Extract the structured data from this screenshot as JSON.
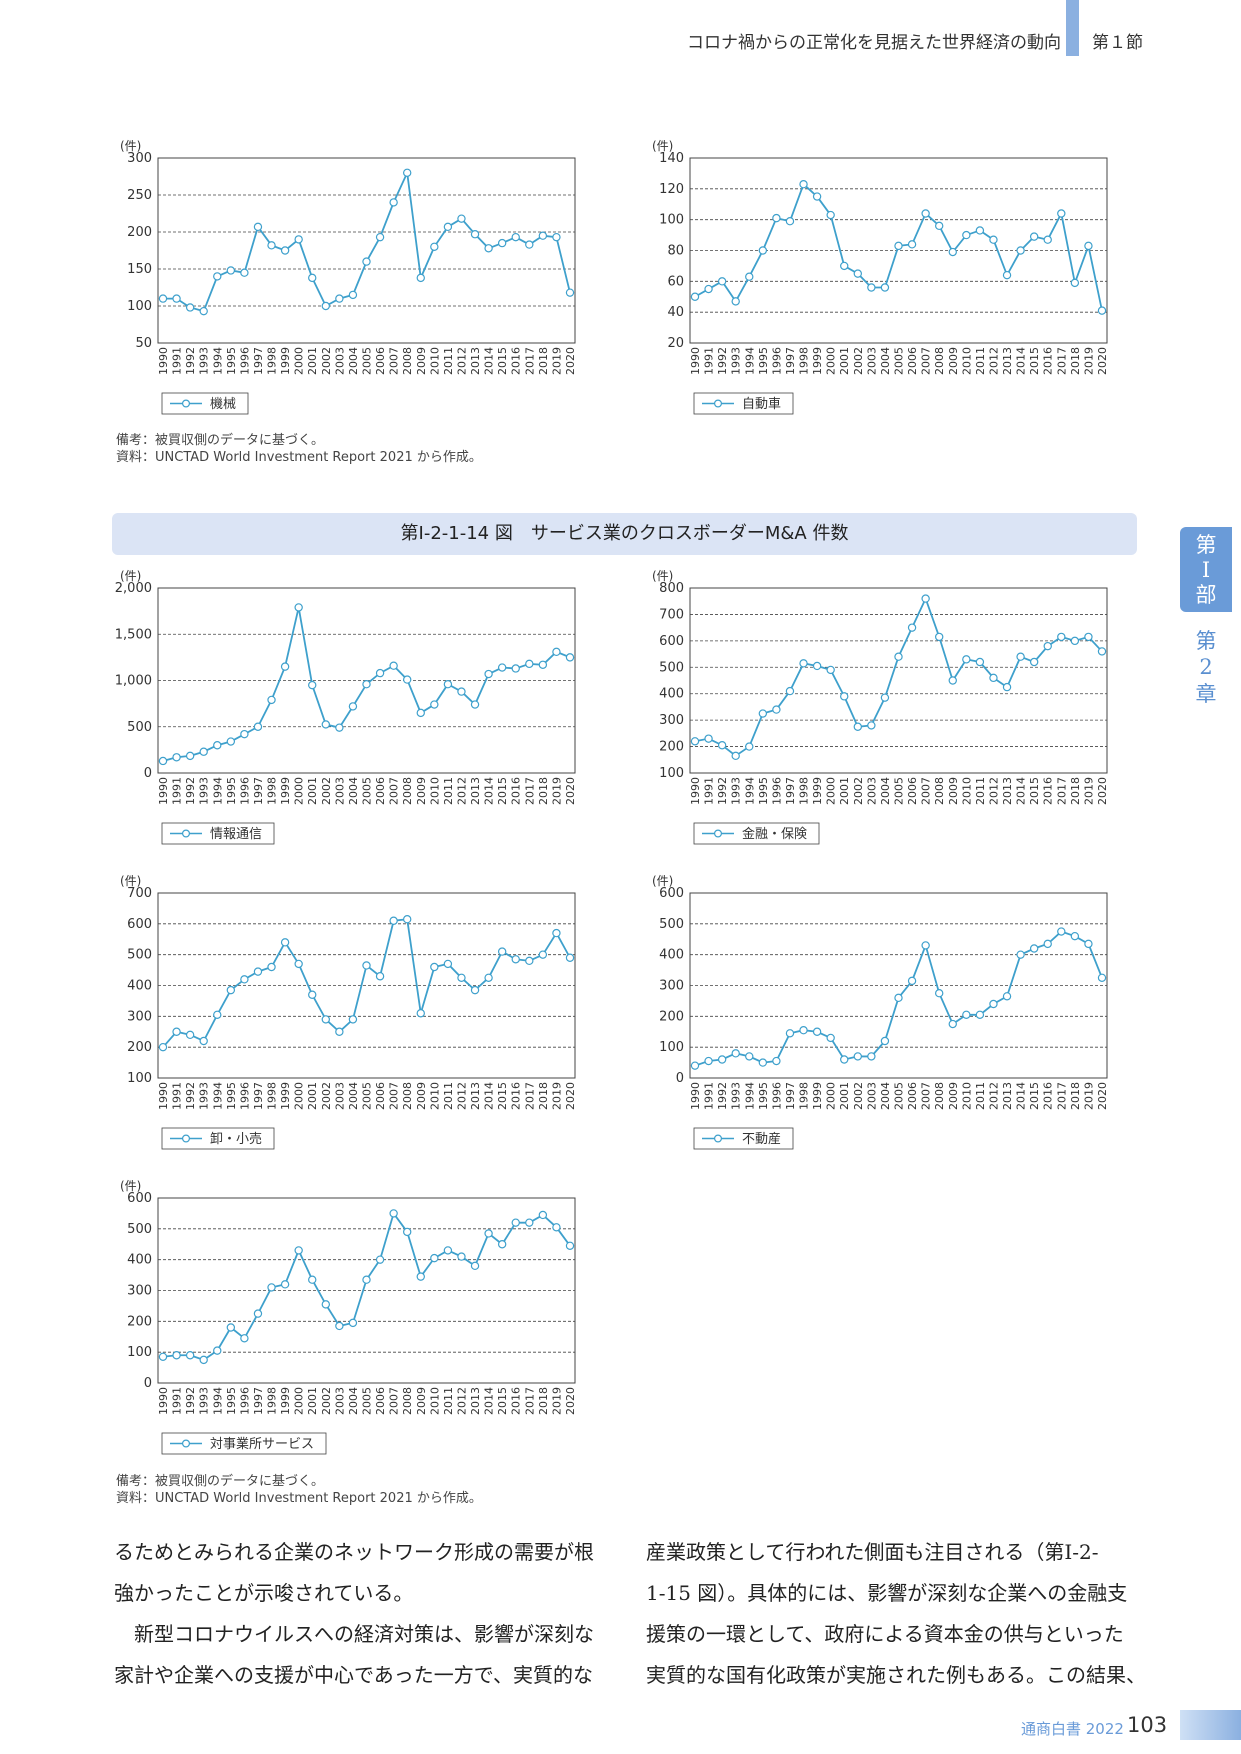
{
  "header": {
    "title": "コロナ禍からの正常化を見据えた世界経済の動向",
    "section": "第１節"
  },
  "side_tab": {
    "part": [
      "第",
      "Ⅰ",
      "部"
    ],
    "chapter": [
      "第",
      "2",
      "章"
    ]
  },
  "figure_title": "第Ⅰ-2-1-14 図　サービス業のクロスボーダーM&A 件数",
  "notes": {
    "top_bikou": "備考：被買収側のデータに基づく。",
    "top_shiryo": "資料：UNCTAD World Investment Report 2021 から作成。",
    "bottom_bikou": "備考：被買収側のデータに基づく。",
    "bottom_shiryo": "資料：UNCTAD World Investment Report 2021 から作成。"
  },
  "body": {
    "left": [
      "るためとみられる企業のネットワーク形成の需要が根",
      "強かったことが示唆されている。",
      "　新型コロナウイルスへの経済対策は、影響が深刻な",
      "家計や企業への支援が中心であった一方で、実質的な"
    ],
    "right": [
      "産業政策として行われた側面も注目される（第Ⅰ-2-",
      "1-15 図）。具体的には、影響が深刻な企業への金融支",
      "援策の一環として、政府による資本金の供与といった",
      "実質的な国有化政策が実施された例もある。この結果、"
    ]
  },
  "footer": {
    "label": "通商白書 2022",
    "page": "103"
  },
  "colors": {
    "line": "#3ea0cc",
    "marker_fill": "#ffffff"
  },
  "chart_data": [
    {
      "type": "line",
      "ylabel": "(件)",
      "x": [
        "1990",
        "1991",
        "1992",
        "1993",
        "1994",
        "1995",
        "1996",
        "1997",
        "1998",
        "1999",
        "2000",
        "2001",
        "2002",
        "2003",
        "2004",
        "2005",
        "2006",
        "2007",
        "2008",
        "2009",
        "2010",
        "2011",
        "2012",
        "2013",
        "2014",
        "2015",
        "2016",
        "2017",
        "2018",
        "2019",
        "2020"
      ],
      "yticks": [
        "50",
        "100",
        "150",
        "200",
        "250",
        "300"
      ],
      "ylim": [
        50,
        300
      ],
      "series": [
        {
          "name": "機械",
          "values": [
            110,
            110,
            98,
            93,
            140,
            148,
            145,
            207,
            182,
            175,
            190,
            138,
            100,
            110,
            115,
            160,
            193,
            240,
            280,
            138,
            180,
            207,
            218,
            197,
            178,
            185,
            193,
            183,
            195,
            193,
            118
          ]
        }
      ]
    },
    {
      "type": "line",
      "ylabel": "(件)",
      "x": [
        "1990",
        "1991",
        "1992",
        "1993",
        "1994",
        "1995",
        "1996",
        "1997",
        "1998",
        "1999",
        "2000",
        "2001",
        "2002",
        "2003",
        "2004",
        "2005",
        "2006",
        "2007",
        "2008",
        "2009",
        "2010",
        "2011",
        "2012",
        "2013",
        "2014",
        "2015",
        "2016",
        "2017",
        "2018",
        "2019",
        "2020"
      ],
      "yticks": [
        "20",
        "40",
        "60",
        "80",
        "100",
        "120",
        "140"
      ],
      "ylim": [
        20,
        140
      ],
      "series": [
        {
          "name": "自動車",
          "values": [
            50,
            55,
            60,
            47,
            63,
            80,
            101,
            99,
            123,
            115,
            103,
            70,
            65,
            56,
            56,
            83,
            84,
            104,
            96,
            79,
            90,
            93,
            87,
            64,
            80,
            89,
            87,
            104,
            59,
            83,
            41
          ]
        }
      ]
    },
    {
      "type": "line",
      "ylabel": "(件)",
      "x": [
        "1990",
        "1991",
        "1992",
        "1993",
        "1994",
        "1995",
        "1996",
        "1997",
        "1998",
        "1999",
        "2000",
        "2001",
        "2002",
        "2003",
        "2004",
        "2005",
        "2006",
        "2007",
        "2008",
        "2009",
        "2010",
        "2011",
        "2012",
        "2013",
        "2014",
        "2015",
        "2016",
        "2017",
        "2018",
        "2019",
        "2020"
      ],
      "yticks": [
        "0",
        "500",
        "1,000",
        "1,500",
        "2,000"
      ],
      "ylim": [
        0,
        2000
      ],
      "series": [
        {
          "name": "情報通信",
          "values": [
            130,
            170,
            185,
            230,
            300,
            340,
            420,
            500,
            790,
            1150,
            1790,
            950,
            525,
            490,
            720,
            960,
            1080,
            1160,
            1010,
            650,
            740,
            960,
            880,
            740,
            1070,
            1140,
            1130,
            1180,
            1170,
            1310,
            1250
          ]
        }
      ]
    },
    {
      "type": "line",
      "ylabel": "(件)",
      "x": [
        "1990",
        "1991",
        "1992",
        "1993",
        "1994",
        "1995",
        "1996",
        "1997",
        "1998",
        "1999",
        "2000",
        "2001",
        "2002",
        "2003",
        "2004",
        "2005",
        "2006",
        "2007",
        "2008",
        "2009",
        "2010",
        "2011",
        "2012",
        "2013",
        "2014",
        "2015",
        "2016",
        "2017",
        "2018",
        "2019",
        "2020"
      ],
      "yticks": [
        "100",
        "200",
        "300",
        "400",
        "500",
        "600",
        "700",
        "800"
      ],
      "ylim": [
        100,
        800
      ],
      "series": [
        {
          "name": "金融・保険",
          "values": [
            220,
            230,
            205,
            165,
            200,
            325,
            340,
            410,
            515,
            505,
            490,
            390,
            275,
            280,
            385,
            540,
            650,
            760,
            615,
            450,
            530,
            520,
            460,
            425,
            540,
            520,
            580,
            615,
            600,
            615,
            560
          ]
        }
      ]
    },
    {
      "type": "line",
      "ylabel": "(件)",
      "x": [
        "1990",
        "1991",
        "1992",
        "1993",
        "1994",
        "1995",
        "1996",
        "1997",
        "1998",
        "1999",
        "2000",
        "2001",
        "2002",
        "2003",
        "2004",
        "2005",
        "2006",
        "2007",
        "2008",
        "2009",
        "2010",
        "2011",
        "2012",
        "2013",
        "2014",
        "2015",
        "2016",
        "2017",
        "2018",
        "2019",
        "2020"
      ],
      "yticks": [
        "100",
        "200",
        "300",
        "400",
        "500",
        "600",
        "700"
      ],
      "ylim": [
        100,
        700
      ],
      "series": [
        {
          "name": "卸・小売",
          "values": [
            200,
            250,
            240,
            220,
            305,
            385,
            420,
            445,
            460,
            540,
            470,
            370,
            290,
            250,
            290,
            465,
            430,
            610,
            615,
            310,
            460,
            470,
            425,
            385,
            425,
            510,
            485,
            480,
            500,
            570,
            490
          ]
        }
      ]
    },
    {
      "type": "line",
      "ylabel": "(件)",
      "x": [
        "1990",
        "1991",
        "1992",
        "1993",
        "1994",
        "1995",
        "1996",
        "1997",
        "1998",
        "1999",
        "2000",
        "2001",
        "2002",
        "2003",
        "2004",
        "2005",
        "2006",
        "2007",
        "2008",
        "2009",
        "2010",
        "2011",
        "2012",
        "2013",
        "2014",
        "2015",
        "2016",
        "2017",
        "2018",
        "2019",
        "2020"
      ],
      "yticks": [
        "0",
        "100",
        "200",
        "300",
        "400",
        "500",
        "600"
      ],
      "ylim": [
        0,
        600
      ],
      "series": [
        {
          "name": "不動産",
          "values": [
            40,
            55,
            60,
            80,
            70,
            50,
            55,
            145,
            155,
            150,
            130,
            60,
            70,
            70,
            120,
            260,
            315,
            430,
            275,
            175,
            205,
            205,
            240,
            265,
            400,
            420,
            435,
            475,
            460,
            435,
            325
          ]
        }
      ]
    },
    {
      "type": "line",
      "ylabel": "(件)",
      "x": [
        "1990",
        "1991",
        "1992",
        "1993",
        "1994",
        "1995",
        "1996",
        "1997",
        "1998",
        "1999",
        "2000",
        "2001",
        "2002",
        "2003",
        "2004",
        "2005",
        "2006",
        "2007",
        "2008",
        "2009",
        "2010",
        "2011",
        "2012",
        "2013",
        "2014",
        "2015",
        "2016",
        "2017",
        "2018",
        "2019",
        "2020"
      ],
      "yticks": [
        "0",
        "100",
        "200",
        "300",
        "400",
        "500",
        "600"
      ],
      "ylim": [
        0,
        600
      ],
      "series": [
        {
          "name": "対事業所サービス",
          "values": [
            85,
            90,
            90,
            75,
            105,
            180,
            145,
            225,
            310,
            320,
            430,
            335,
            255,
            185,
            195,
            335,
            400,
            550,
            490,
            345,
            405,
            430,
            410,
            380,
            485,
            450,
            520,
            520,
            545,
            505,
            445
          ]
        }
      ]
    }
  ]
}
